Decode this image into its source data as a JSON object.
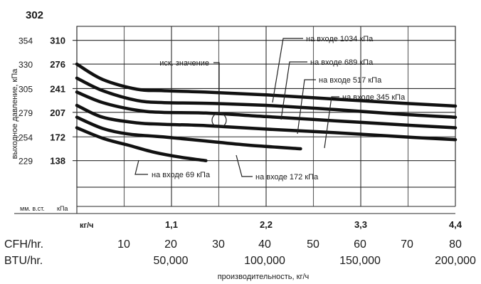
{
  "figure_id": "302",
  "chart_data": {
    "type": "line",
    "ylabel": "выходное давление, кПа",
    "xlabel": "производительность, кг/ч",
    "x_unit": "кг/ч",
    "y_unit_left": "мм. в.ст.",
    "y_unit_right": "кПа",
    "xlim": [
      0,
      4.4
    ],
    "ylim": [
      100,
      330
    ],
    "y_ticks_kpa": [
      "310",
      "276",
      "241",
      "207",
      "172",
      "138"
    ],
    "y_ticks_mm": [
      "354",
      "330",
      "305",
      "279",
      "254",
      "229"
    ],
    "x_ticks": [
      "1,1",
      "2,2",
      "3,3",
      "4,4"
    ],
    "cfh_label": "CFH/hr.",
    "cfh_ticks": [
      "10",
      "20",
      "30",
      "40",
      "50",
      "60",
      "70",
      "80"
    ],
    "btu_label": "BTU/hr.",
    "btu_ticks": [
      "50,000",
      "100,000",
      "150,000",
      "200,000"
    ],
    "annotation": "иск. значение",
    "series": [
      {
        "name": "на входе 1034 кПа",
        "x": [
          0,
          0.3,
          0.7,
          1.0,
          1.5,
          2.2,
          3.0,
          3.8,
          4.4
        ],
        "y": [
          276,
          254,
          240,
          238,
          236,
          232,
          226,
          220,
          216
        ]
      },
      {
        "name": "на входе 689 кПа",
        "x": [
          0,
          0.3,
          0.7,
          1.0,
          1.5,
          2.2,
          3.0,
          3.8,
          4.4
        ],
        "y": [
          256,
          238,
          224,
          221,
          220,
          217,
          211,
          204,
          200
        ]
      },
      {
        "name": "на входе 517 кПа",
        "x": [
          0,
          0.3,
          0.7,
          1.0,
          1.5,
          2.2,
          3.0,
          3.8,
          4.4
        ],
        "y": [
          236,
          221,
          210,
          207,
          206,
          201,
          195,
          189,
          185
        ]
      },
      {
        "name": "на входе 345 кПа",
        "x": [
          0,
          0.3,
          0.7,
          1.0,
          1.5,
          2.2,
          3.0,
          3.8,
          4.4
        ],
        "y": [
          217,
          200,
          192,
          190,
          188,
          183,
          178,
          172,
          168
        ]
      },
      {
        "name": "на входе 172 кПа",
        "x": [
          0,
          0.3,
          0.6,
          1.0,
          1.5,
          2.0,
          2.6
        ],
        "y": [
          200,
          184,
          176,
          172,
          166,
          160,
          155
        ]
      },
      {
        "name": "на входе 69 кПа",
        "x": [
          0,
          0.3,
          0.6,
          0.9,
          1.2,
          1.5
        ],
        "y": [
          185,
          170,
          160,
          150,
          143,
          138
        ]
      }
    ]
  }
}
